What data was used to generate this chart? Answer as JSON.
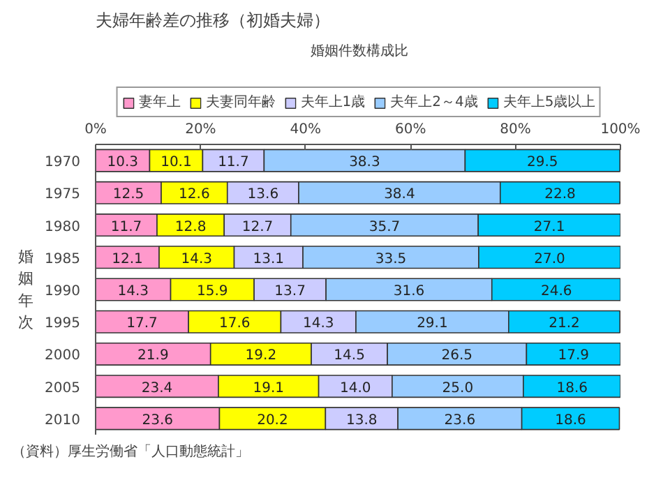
{
  "chart_data": {
    "type": "bar",
    "orientation": "horizontal",
    "stacked": true,
    "data_labels": true,
    "legend": "top",
    "grid": false,
    "title": "夫婦年齢差の推移（初婚夫婦）",
    "subtitle": "婚姻件数構成比",
    "ylabel": "婚姻年次",
    "categories": [
      "1970",
      "1975",
      "1980",
      "1985",
      "1990",
      "1995",
      "2000",
      "2005",
      "2010"
    ],
    "xlim": [
      0,
      100
    ],
    "xticks": [
      {
        "value": 0,
        "label": "0%"
      },
      {
        "value": 20,
        "label": "20%"
      },
      {
        "value": 40,
        "label": "40%"
      },
      {
        "value": 60,
        "label": "60%"
      },
      {
        "value": 80,
        "label": "80%"
      },
      {
        "value": 100,
        "label": "100%"
      }
    ],
    "series": [
      {
        "name": "妻年上",
        "color": "#ff99cc",
        "values": [
          10.3,
          12.5,
          11.7,
          12.1,
          14.3,
          17.7,
          21.9,
          23.4,
          23.6
        ]
      },
      {
        "name": "夫妻同年齢",
        "color": "#ffff00",
        "values": [
          10.1,
          12.6,
          12.8,
          14.3,
          15.9,
          17.6,
          19.2,
          19.1,
          20.2
        ]
      },
      {
        "name": "夫年上1歳",
        "color": "#ccccff",
        "values": [
          11.7,
          13.6,
          12.7,
          13.1,
          13.7,
          14.3,
          14.5,
          14.0,
          13.8
        ],
        "value_labels": [
          "11.7",
          "13.6",
          "12.7",
          "13.1",
          "13.7",
          "14.3",
          "14.5",
          "14.0",
          "13.8"
        ]
      },
      {
        "name": "夫年上2～4歳",
        "color": "#99ccff",
        "values": [
          38.3,
          38.4,
          35.7,
          33.5,
          31.6,
          29.1,
          26.5,
          25.0,
          23.6
        ],
        "value_labels": [
          "38.3",
          "38.4",
          "35.7",
          "33.5",
          "31.6",
          "29.1",
          "26.5",
          "25.0",
          "23.6"
        ]
      },
      {
        "name": "夫年上5歳以上",
        "color": "#00ccff",
        "values": [
          29.5,
          22.8,
          27.1,
          27.0,
          24.6,
          21.2,
          17.9,
          18.6,
          18.6
        ],
        "value_labels": [
          "29.5",
          "22.8",
          "27.1",
          "27.0",
          "24.6",
          "21.2",
          "17.9",
          "18.6",
          "18.6"
        ]
      }
    ],
    "annotations": [
      "（資料）厚生労働省「人口動態統計」"
    ]
  }
}
